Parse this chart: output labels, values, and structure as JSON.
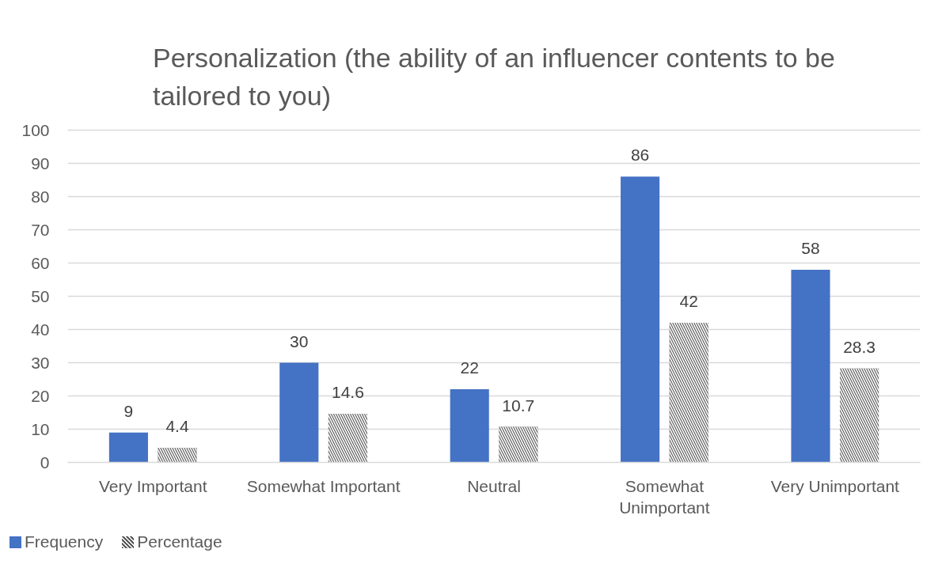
{
  "chart_data": {
    "type": "bar",
    "title": "Personalization (the ability of an influencer contents to be tailored to you)",
    "categories": [
      "Very Important",
      "Somewhat Important",
      "Neutral",
      "Somewhat Unimportant",
      "Very Unimportant"
    ],
    "series": [
      {
        "name": "Frequency",
        "color": "#4472c4",
        "values": [
          9,
          30,
          22,
          86,
          58
        ]
      },
      {
        "name": "Percentage",
        "color": "#595959",
        "values": [
          4.4,
          14.6,
          10.7,
          42,
          28.3
        ]
      }
    ],
    "ylim": [
      0,
      100
    ],
    "yticks": [
      0,
      10,
      20,
      30,
      40,
      50,
      60,
      70,
      80,
      90,
      100
    ],
    "grid": "y",
    "legend": "bottom",
    "data_labels": true
  }
}
